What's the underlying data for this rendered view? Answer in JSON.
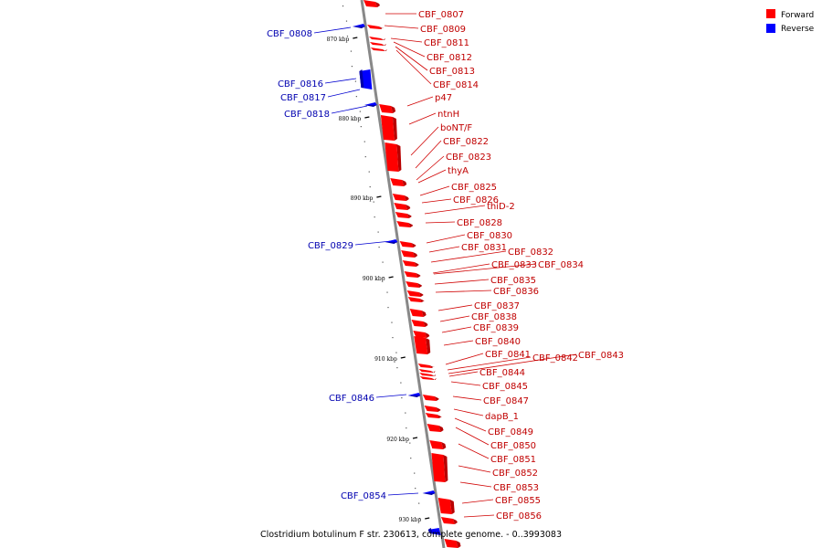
{
  "title": "Clostridium botulinum F str. 230613, complete genome. - 0..3993083",
  "legend": [
    {
      "label": "Forward",
      "color": "#ff0000"
    },
    {
      "label": "Reverse",
      "color": "#0000ff"
    }
  ],
  "ticks": [
    "870 kbp",
    "880 kbp",
    "890 kbp",
    "900 kbp",
    "910 kbp",
    "920 kbp",
    "930 kbp"
  ],
  "forward_genes": [
    "CBF_0807",
    "CBF_0809",
    "CBF_0811",
    "CBF_0812",
    "CBF_0813",
    "CBF_0814",
    "p47",
    "ntnH",
    "boNT/F",
    "CBF_0822",
    "CBF_0823",
    "thyA",
    "CBF_0825",
    "CBF_0826",
    "thiD-2",
    "CBF_0828",
    "CBF_0830",
    "CBF_0831",
    "CBF_0832",
    "CBF_0833",
    "CBF_0834",
    "CBF_0835",
    "CBF_0836",
    "CBF_0837",
    "CBF_0838",
    "CBF_0839",
    "CBF_0840",
    "CBF_0841",
    "CBF_0842",
    "CBF_0843",
    "CBF_0844",
    "CBF_0845",
    "CBF_0847",
    "dapB_1",
    "CBF_0849",
    "CBF_0850",
    "CBF_0851",
    "CBF_0852",
    "CBF_0853",
    "CBF_0855",
    "CBF_0856"
  ],
  "reverse_genes": [
    "CBF_0808",
    "CBF_0816",
    "CBF_0817",
    "CBF_0818",
    "CBF_0829",
    "CBF_0846",
    "CBF_0854"
  ],
  "colors": {
    "forward": "#ff0000",
    "forward_dark": "#b80000",
    "reverse": "#0000ff",
    "reverse_dark": "#0000a8",
    "axis": "#808080"
  }
}
